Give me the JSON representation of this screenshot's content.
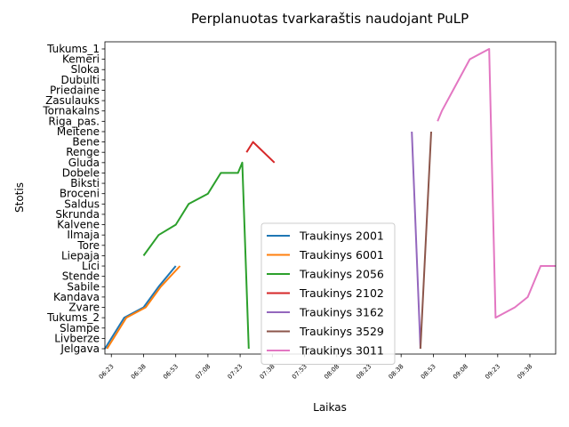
{
  "chart_data": {
    "type": "line",
    "title": "Perplanuotas tvarkaraštis naudojant PuLP",
    "xlabel": "Laikas",
    "ylabel": "Stotis",
    "x_axis": {
      "unit": "time-of-day",
      "min": "06:20",
      "max": "09:50",
      "ticks": [
        "06:23",
        "06:38",
        "06:53",
        "07:08",
        "07:23",
        "07:38",
        "07:53",
        "08:08",
        "08:23",
        "08:38",
        "08:53",
        "09:08",
        "09:23",
        "09:38"
      ]
    },
    "stations": [
      "Jelgava",
      "Livberze",
      "Slampe",
      "Tukums_2",
      "Zvare",
      "Kandava",
      "Sabile",
      "Stende",
      "Lici",
      "Liepaja",
      "Tore",
      "Ilmaja",
      "Kalvene",
      "Skrunda",
      "Saldus",
      "Broceni",
      "Biksti",
      "Dobele",
      "Gluda",
      "Renge",
      "Bene",
      "Meitene",
      "Riga_pas.",
      "Tornakalns",
      "Zasulauks",
      "Priedaine",
      "Dubulti",
      "Sloka",
      "Kemeri",
      "Tukums_1"
    ],
    "legend_position": "lower-center-right",
    "grid": false,
    "series": [
      {
        "name": "Traukinys 2001",
        "color": "#1f77b4",
        "points": [
          [
            "06:20",
            "Jelgava"
          ],
          [
            "06:29",
            "Tukums_2"
          ],
          [
            "06:38",
            "Zvare"
          ],
          [
            "06:45",
            "Sabile"
          ],
          [
            "06:53",
            "Lici"
          ]
        ]
      },
      {
        "name": "Traukinys 6001",
        "color": "#ff7f0e",
        "points": [
          [
            "06:21",
            "Jelgava"
          ],
          [
            "06:30",
            "Tukums_2"
          ],
          [
            "06:39",
            "Zvare"
          ],
          [
            "06:46",
            "Sabile"
          ],
          [
            "06:55",
            "Lici"
          ]
        ]
      },
      {
        "name": "Traukinys 2056",
        "color": "#2ca02c",
        "points": [
          [
            "06:38",
            "Liepaja"
          ],
          [
            "06:45",
            "Ilmaja"
          ],
          [
            "06:53",
            "Kalvene"
          ],
          [
            "06:59",
            "Saldus"
          ],
          [
            "07:08",
            "Broceni"
          ],
          [
            "07:14",
            "Dobele"
          ],
          [
            "07:22",
            "Dobele"
          ],
          [
            "07:24",
            "Gluda"
          ],
          [
            "07:27",
            "Jelgava"
          ]
        ]
      },
      {
        "name": "Traukinys 2102",
        "color": "#d62728",
        "points": [
          [
            "07:26",
            "Renge"
          ],
          [
            "07:29",
            "Bene"
          ],
          [
            "07:39",
            "Gluda"
          ]
        ]
      },
      {
        "name": "Traukinys 3162",
        "color": "#9467bd",
        "points": [
          [
            "08:43",
            "Meitene"
          ],
          [
            "08:47",
            "Jelgava"
          ]
        ]
      },
      {
        "name": "Traukinys 3529",
        "color": "#8c564b",
        "points": [
          [
            "08:47",
            "Jelgava"
          ],
          [
            "08:52",
            "Meitene"
          ]
        ]
      },
      {
        "name": "Traukinys 3011",
        "color": "#e377c2",
        "points": [
          [
            "08:55",
            "Riga_pas."
          ],
          [
            "08:57",
            "Tornakalns"
          ],
          [
            "09:10",
            "Kemeri"
          ],
          [
            "09:19",
            "Tukums_1"
          ],
          [
            "09:22",
            "Tukums_2"
          ],
          [
            "09:31",
            "Zvare"
          ],
          [
            "09:37",
            "Kandava"
          ],
          [
            "09:43",
            "Lici"
          ],
          [
            "09:50",
            "Lici"
          ]
        ]
      }
    ]
  }
}
